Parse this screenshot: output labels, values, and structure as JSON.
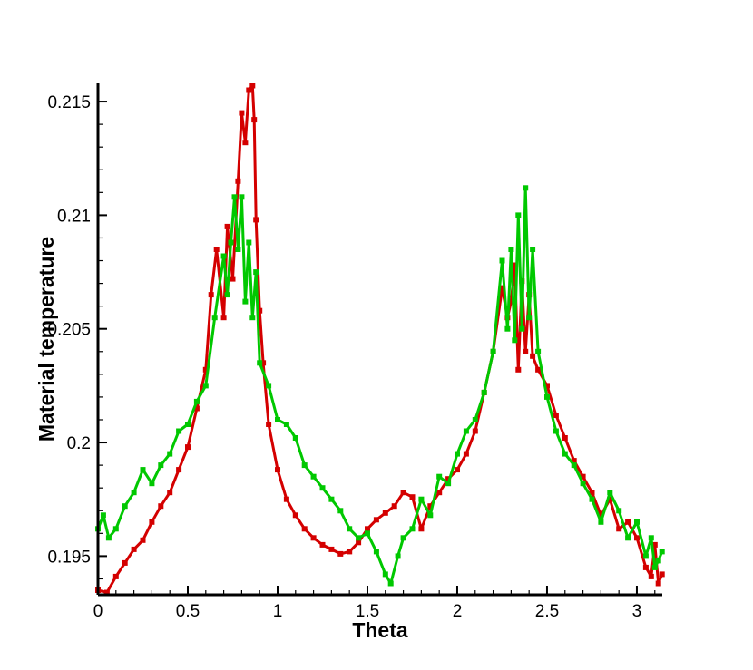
{
  "chart_data": {
    "type": "line",
    "xlabel": "Theta",
    "ylabel": "Material temperature",
    "xlim": [
      0,
      3.1416
    ],
    "ylim": [
      0.1933,
      0.2158
    ],
    "xticks": [
      "0",
      "0.5",
      "1",
      "1.5",
      "2",
      "2.5",
      "3"
    ],
    "yticks": [
      "0.195",
      "0.2",
      "0.205",
      "0.21",
      "0.215"
    ],
    "grid": false,
    "legend": "none",
    "series": [
      {
        "color": "#d40000",
        "marker": "square",
        "x": [
          0.0,
          0.05,
          0.1,
          0.15,
          0.2,
          0.25,
          0.3,
          0.35,
          0.4,
          0.45,
          0.5,
          0.55,
          0.6,
          0.63,
          0.66,
          0.7,
          0.72,
          0.75,
          0.78,
          0.8,
          0.82,
          0.84,
          0.86,
          0.87,
          0.88,
          0.9,
          0.92,
          0.95,
          1.0,
          1.05,
          1.1,
          1.15,
          1.2,
          1.25,
          1.3,
          1.35,
          1.4,
          1.45,
          1.5,
          1.55,
          1.6,
          1.65,
          1.7,
          1.75,
          1.8,
          1.85,
          1.9,
          1.95,
          2.0,
          2.05,
          2.1,
          2.15,
          2.2,
          2.25,
          2.28,
          2.3,
          2.32,
          2.34,
          2.36,
          2.38,
          2.4,
          2.42,
          2.45,
          2.5,
          2.55,
          2.6,
          2.65,
          2.7,
          2.75,
          2.8,
          2.85,
          2.9,
          2.95,
          3.0,
          3.05,
          3.08,
          3.1,
          3.12,
          3.14
        ],
        "y": [
          0.1935,
          0.1934,
          0.1941,
          0.1947,
          0.1953,
          0.1957,
          0.1965,
          0.1972,
          0.1978,
          0.1988,
          0.1998,
          0.2015,
          0.2032,
          0.2065,
          0.2085,
          0.2055,
          0.2095,
          0.2072,
          0.2115,
          0.2145,
          0.2132,
          0.2155,
          0.2157,
          0.2142,
          0.2098,
          0.2058,
          0.2035,
          0.2008,
          0.1988,
          0.1975,
          0.1968,
          0.1962,
          0.1958,
          0.1955,
          0.1953,
          0.1951,
          0.1952,
          0.1956,
          0.1962,
          0.1966,
          0.1969,
          0.1972,
          0.1978,
          0.1976,
          0.1962,
          0.1972,
          0.1978,
          0.1984,
          0.1988,
          0.1995,
          0.2005,
          0.2022,
          0.204,
          0.2068,
          0.2055,
          0.2062,
          0.2078,
          0.2032,
          0.2071,
          0.204,
          0.2065,
          0.2038,
          0.2032,
          0.2025,
          0.2012,
          0.2002,
          0.1992,
          0.1985,
          0.1978,
          0.1968,
          0.1975,
          0.1962,
          0.1965,
          0.1958,
          0.1945,
          0.1941,
          0.1955,
          0.1938,
          0.1942
        ]
      },
      {
        "color": "#00c800",
        "marker": "square",
        "x": [
          0.0,
          0.03,
          0.06,
          0.1,
          0.15,
          0.2,
          0.25,
          0.3,
          0.35,
          0.4,
          0.45,
          0.5,
          0.55,
          0.6,
          0.65,
          0.7,
          0.72,
          0.74,
          0.76,
          0.78,
          0.8,
          0.82,
          0.84,
          0.86,
          0.88,
          0.9,
          0.95,
          1.0,
          1.05,
          1.1,
          1.15,
          1.2,
          1.25,
          1.3,
          1.35,
          1.4,
          1.45,
          1.5,
          1.55,
          1.6,
          1.63,
          1.67,
          1.7,
          1.75,
          1.8,
          1.85,
          1.9,
          1.95,
          2.0,
          2.05,
          2.1,
          2.15,
          2.2,
          2.25,
          2.28,
          2.3,
          2.32,
          2.34,
          2.36,
          2.38,
          2.4,
          2.42,
          2.45,
          2.5,
          2.55,
          2.6,
          2.65,
          2.7,
          2.75,
          2.8,
          2.85,
          2.9,
          2.95,
          3.0,
          3.05,
          3.08,
          3.1,
          3.12,
          3.14
        ],
        "y": [
          0.1962,
          0.1968,
          0.1958,
          0.1962,
          0.1972,
          0.1978,
          0.1988,
          0.1982,
          0.199,
          0.1995,
          0.2005,
          0.2008,
          0.2018,
          0.2025,
          0.2055,
          0.2082,
          0.2065,
          0.2088,
          0.2108,
          0.2085,
          0.2108,
          0.2062,
          0.2088,
          0.2055,
          0.2075,
          0.2035,
          0.2025,
          0.201,
          0.2008,
          0.2002,
          0.199,
          0.1985,
          0.198,
          0.1975,
          0.197,
          0.1962,
          0.1958,
          0.196,
          0.1952,
          0.1942,
          0.1938,
          0.195,
          0.1958,
          0.1962,
          0.1975,
          0.1968,
          0.1985,
          0.1982,
          0.1995,
          0.2005,
          0.201,
          0.2022,
          0.204,
          0.208,
          0.205,
          0.2085,
          0.2045,
          0.21,
          0.205,
          0.2112,
          0.2055,
          0.2085,
          0.204,
          0.202,
          0.2005,
          0.1995,
          0.199,
          0.1982,
          0.1975,
          0.1965,
          0.1978,
          0.197,
          0.1958,
          0.1965,
          0.195,
          0.1958,
          0.1945,
          0.1948,
          0.1952
        ]
      }
    ]
  }
}
